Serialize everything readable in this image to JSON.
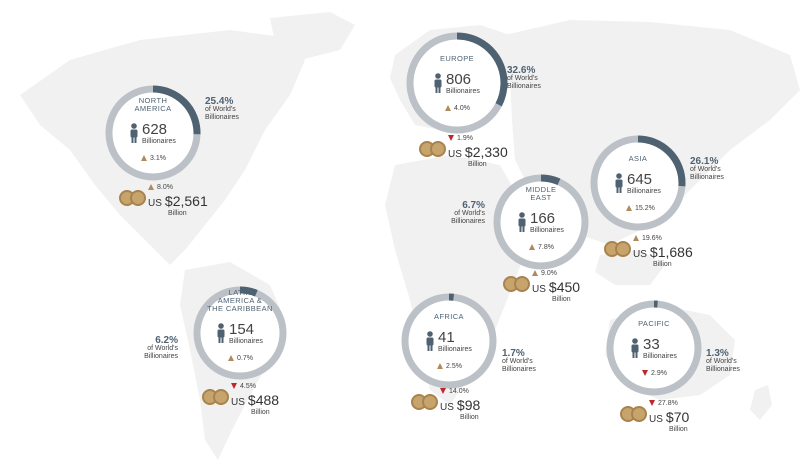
{
  "colors": {
    "ring_track": "#bcc1c7",
    "ring_fill": "#4f6272",
    "map": "#f1f1f2",
    "up_arrow": "#b08a5a",
    "down_arrow": "#c0272d",
    "coin": "#c6a46c"
  },
  "regions": [
    {
      "id": "north-america",
      "name_lines": [
        "NORTH",
        "AMERICA"
      ],
      "billionaires": "628",
      "billionaires_label": "Billionaires",
      "change_dir": "up",
      "change": "3.1%",
      "share": "25.4%",
      "share_label_1": "of World's",
      "share_label_2": "Billionaires",
      "share_fraction": 0.254,
      "wealth_dir": "up",
      "wealth_change": "8.0%",
      "wealth_prefix": "US",
      "wealth": "$2,561",
      "wealth_unit": "Billion"
    },
    {
      "id": "europe",
      "name_lines": [
        "EUROPE"
      ],
      "billionaires": "806",
      "billionaires_label": "Billionaires",
      "change_dir": "up",
      "change": "4.0%",
      "share": "32.6%",
      "share_label_1": "of World's",
      "share_label_2": "Billionaires",
      "share_fraction": 0.326,
      "wealth_dir": "down",
      "wealth_change": "1.9%",
      "wealth_prefix": "US",
      "wealth": "$2,330",
      "wealth_unit": "Billion"
    },
    {
      "id": "asia",
      "name_lines": [
        "ASIA"
      ],
      "billionaires": "645",
      "billionaires_label": "Billionaires",
      "change_dir": "up",
      "change": "15.2%",
      "share": "26.1%",
      "share_label_1": "of World's",
      "share_label_2": "Billionaires",
      "share_fraction": 0.261,
      "wealth_dir": "up",
      "wealth_change": "19.6%",
      "wealth_prefix": "US",
      "wealth": "$1,686",
      "wealth_unit": "Billion"
    },
    {
      "id": "middle-east",
      "name_lines": [
        "MIDDLE",
        "EAST"
      ],
      "billionaires": "166",
      "billionaires_label": "Billionaires",
      "change_dir": "up",
      "change": "7.8%",
      "share": "6.7%",
      "share_label_1": "of World's",
      "share_label_2": "Billionaires",
      "share_fraction": 0.067,
      "wealth_dir": "up",
      "wealth_change": "9.0%",
      "wealth_prefix": "US",
      "wealth": "$450",
      "wealth_unit": "Billion"
    },
    {
      "id": "latin-america",
      "name_lines": [
        "LATIN",
        "AMERICA &",
        "THE CARIBBEAN"
      ],
      "billionaires": "154",
      "billionaires_label": "Billionaires",
      "change_dir": "up",
      "change": "0.7%",
      "share": "6.2%",
      "share_label_1": "of World's",
      "share_label_2": "Billionaires",
      "share_fraction": 0.062,
      "wealth_dir": "down",
      "wealth_change": "4.5%",
      "wealth_prefix": "US",
      "wealth": "$488",
      "wealth_unit": "Billion"
    },
    {
      "id": "africa",
      "name_lines": [
        "AFRICA"
      ],
      "billionaires": "41",
      "billionaires_label": "Billionaires",
      "change_dir": "up",
      "change": "2.5%",
      "share": "1.7%",
      "share_label_1": "of World's",
      "share_label_2": "Billionaires",
      "share_fraction": 0.017,
      "wealth_dir": "down",
      "wealth_change": "14.0%",
      "wealth_prefix": "US",
      "wealth": "$98",
      "wealth_unit": "Billion"
    },
    {
      "id": "pacific",
      "name_lines": [
        "PACIFIC"
      ],
      "billionaires": "33",
      "billionaires_label": "Billionaires",
      "change_dir": "down",
      "change": "2.9%",
      "share": "1.3%",
      "share_label_1": "of World's",
      "share_label_2": "Billionaires",
      "share_fraction": 0.013,
      "wealth_dir": "down",
      "wealth_change": "27.8%",
      "wealth_prefix": "US",
      "wealth": "$70",
      "wealth_unit": "Billion"
    }
  ]
}
